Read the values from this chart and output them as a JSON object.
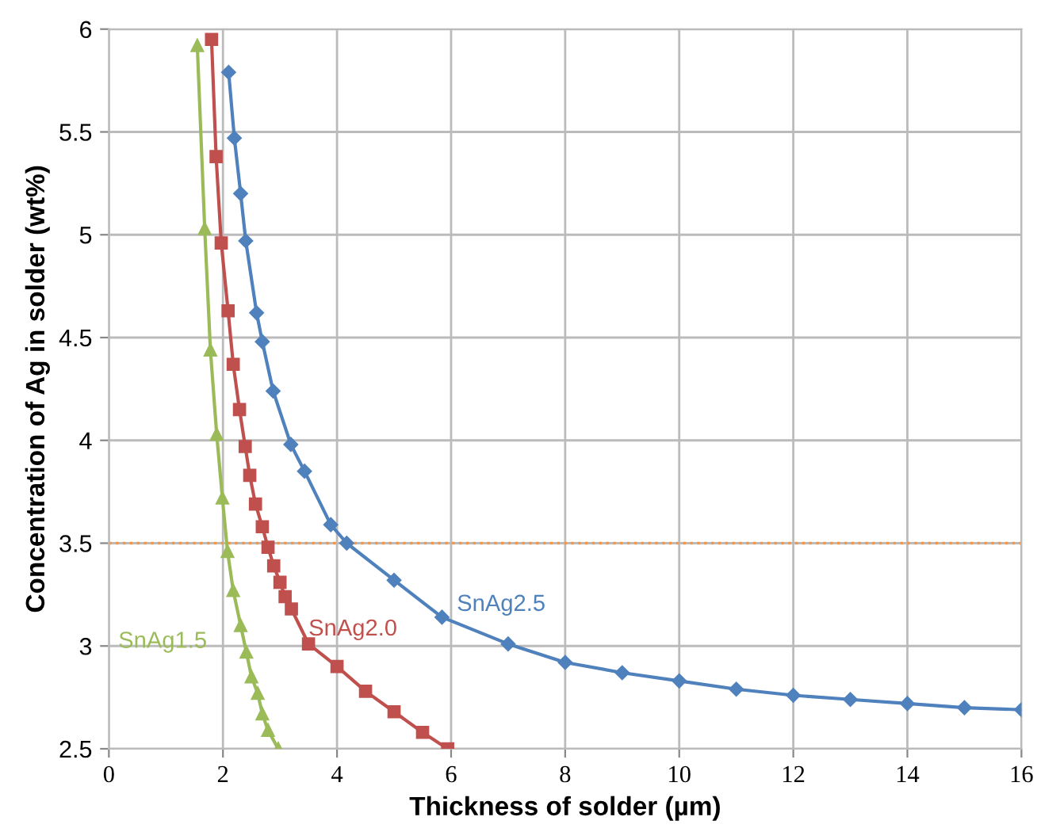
{
  "chart_data": {
    "type": "line",
    "xlabel": "Thickness of solder (µm)",
    "ylabel": "Concentration of Ag in solder (wt%)",
    "xlim": [
      0,
      16
    ],
    "ylim": [
      2.5,
      6
    ],
    "xticks": [
      0,
      2,
      4,
      6,
      8,
      10,
      12,
      14,
      16
    ],
    "yticks": [
      2.5,
      3,
      3.5,
      4,
      4.5,
      5,
      5.5,
      6
    ],
    "grid": true,
    "legend": false,
    "line_style": "solid",
    "ref_lines": [
      {
        "axis": "y",
        "value": 3.5,
        "color": "#f79646",
        "line_style": "dotted"
      }
    ],
    "series": [
      {
        "name": "SnAg1.5",
        "color": "#9bbb59",
        "marker": "triangle",
        "x": [
          1.55,
          1.68,
          1.78,
          1.89,
          1.99,
          2.08,
          2.18,
          2.31,
          2.41,
          2.5,
          2.61,
          2.69,
          2.79,
          2.97
        ],
        "values": [
          5.92,
          5.03,
          4.44,
          4.03,
          3.72,
          3.46,
          3.27,
          3.1,
          2.97,
          2.85,
          2.77,
          2.67,
          2.59,
          2.5
        ]
      },
      {
        "name": "SnAg2.0",
        "color": "#c0504d",
        "marker": "square",
        "x": [
          1.8,
          1.88,
          1.97,
          2.09,
          2.18,
          2.29,
          2.39,
          2.47,
          2.57,
          2.69,
          2.79,
          2.89,
          3.0,
          3.09,
          3.2,
          3.5,
          4.0,
          4.5,
          5.0,
          5.5,
          5.94
        ],
        "values": [
          5.95,
          5.38,
          4.96,
          4.63,
          4.37,
          4.15,
          3.97,
          3.83,
          3.69,
          3.58,
          3.48,
          3.39,
          3.31,
          3.24,
          3.18,
          3.01,
          2.9,
          2.78,
          2.68,
          2.58,
          2.5
        ]
      },
      {
        "name": "SnAg2.5",
        "color": "#4f81bd",
        "marker": "diamond",
        "x": [
          2.1,
          2.2,
          2.31,
          2.4,
          2.59,
          2.69,
          2.88,
          3.19,
          3.43,
          3.89,
          4.17,
          5.0,
          5.84,
          7.0,
          8.0,
          9.0,
          10.0,
          11.0,
          12.0,
          13.0,
          14.0,
          15.0,
          16.0
        ],
        "values": [
          5.79,
          5.47,
          5.2,
          4.97,
          4.62,
          4.48,
          4.24,
          3.98,
          3.85,
          3.59,
          3.5,
          3.32,
          3.14,
          3.01,
          2.92,
          2.87,
          2.83,
          2.79,
          2.76,
          2.74,
          2.72,
          2.7,
          2.69
        ]
      }
    ]
  }
}
